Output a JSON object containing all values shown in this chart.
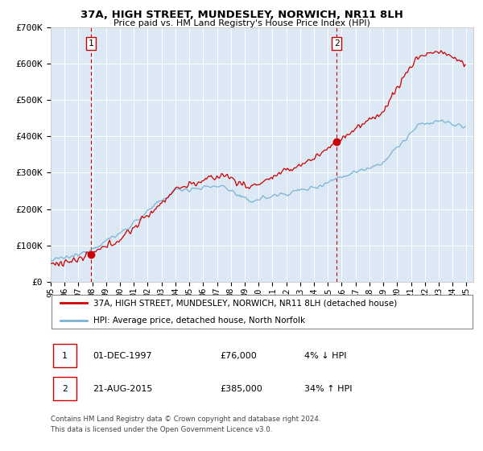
{
  "title": "37A, HIGH STREET, MUNDESLEY, NORWICH, NR11 8LH",
  "subtitle": "Price paid vs. HM Land Registry's House Price Index (HPI)",
  "legend_line1": "37A, HIGH STREET, MUNDESLEY, NORWICH, NR11 8LH (detached house)",
  "legend_line2": "HPI: Average price, detached house, North Norfolk",
  "annotation1_label": "1",
  "annotation1_date": "01-DEC-1997",
  "annotation1_price": "£76,000",
  "annotation1_hpi": "4% ↓ HPI",
  "annotation2_label": "2",
  "annotation2_date": "21-AUG-2015",
  "annotation2_price": "£385,000",
  "annotation2_hpi": "34% ↑ HPI",
  "footer": "Contains HM Land Registry data © Crown copyright and database right 2024.\nThis data is licensed under the Open Government Licence v3.0.",
  "bg_color": "#dce9f5",
  "red_line_color": "#cc0000",
  "blue_line_color": "#7ab3d4",
  "dashed_line_color": "#cc0000",
  "point1_x_year": 1997.917,
  "point1_y": 76000,
  "point2_x_year": 2015.625,
  "point2_y": 385000,
  "ylim_max": 700000,
  "yticks": [
    0,
    100000,
    200000,
    300000,
    400000,
    500000,
    600000,
    700000
  ],
  "ytick_labels": [
    "£0",
    "£100K",
    "£200K",
    "£300K",
    "£400K",
    "£500K",
    "£600K",
    "£700K"
  ],
  "xtick_years": [
    1995,
    1996,
    1997,
    1998,
    1999,
    2000,
    2001,
    2002,
    2003,
    2004,
    2005,
    2006,
    2007,
    2008,
    2009,
    2010,
    2011,
    2012,
    2013,
    2014,
    2015,
    2016,
    2017,
    2018,
    2019,
    2020,
    2021,
    2022,
    2023,
    2024,
    2025
  ]
}
